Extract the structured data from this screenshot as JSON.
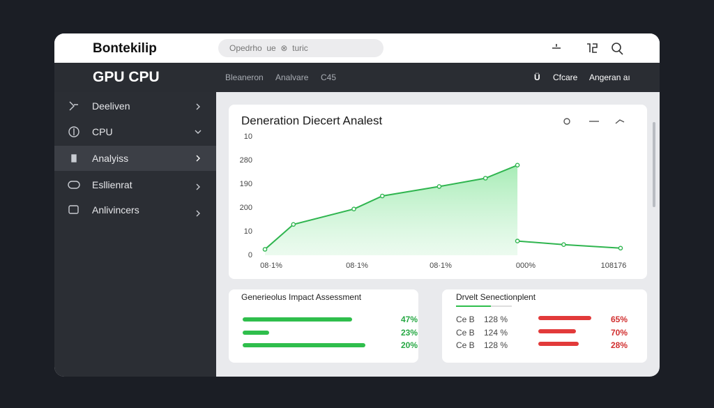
{
  "header": {
    "brand": "Bontekilip",
    "search": "Opedrho  ue  ⊗  turic"
  },
  "toolbar": {
    "title": "GPU CPU",
    "tabs": [
      "Bleaneron",
      "Analvare",
      "C45"
    ],
    "right": [
      "Ü",
      "Cfcare",
      "Angeran aı"
    ]
  },
  "sidebar": {
    "items": [
      "Deeliven",
      "CPU",
      "Analyiss",
      "Esllienrat",
      "Anlivincers"
    ]
  },
  "chart_data": {
    "type": "line",
    "title": "Deneration Diecert Analest",
    "y_labels": [
      "10",
      "280",
      "190",
      "200",
      "10",
      "0"
    ],
    "x_labels": [
      "08·1%",
      "08·1%",
      "08·1%",
      "000%",
      "108176"
    ],
    "xlim": [
      0,
      100
    ],
    "ylim": [
      0,
      100
    ],
    "series": [
      {
        "color": "#2fb54f",
        "fill": true,
        "x": [
          0,
          8,
          25,
          33,
          49,
          62,
          71
        ],
        "values": [
          5,
          26,
          39,
          50,
          58,
          65,
          76
        ]
      },
      {
        "color": "#2fb54f",
        "fill": false,
        "x": [
          71,
          84,
          100
        ],
        "values": [
          12,
          9,
          6
        ]
      }
    ]
  },
  "panels": [
    {
      "title": "Generieolus Impact Assessment",
      "rows": [
        [
          "47%"
        ],
        [
          "23%"
        ],
        [
          "20%"
        ]
      ]
    },
    {
      "title": "Drvelt Senectionplent",
      "rows": [
        [
          "Ce B",
          "128 %",
          "65%"
        ],
        [
          "Ce B",
          "124 %",
          "70%"
        ],
        [
          "Ce B",
          "128 %",
          "28%"
        ]
      ]
    }
  ]
}
